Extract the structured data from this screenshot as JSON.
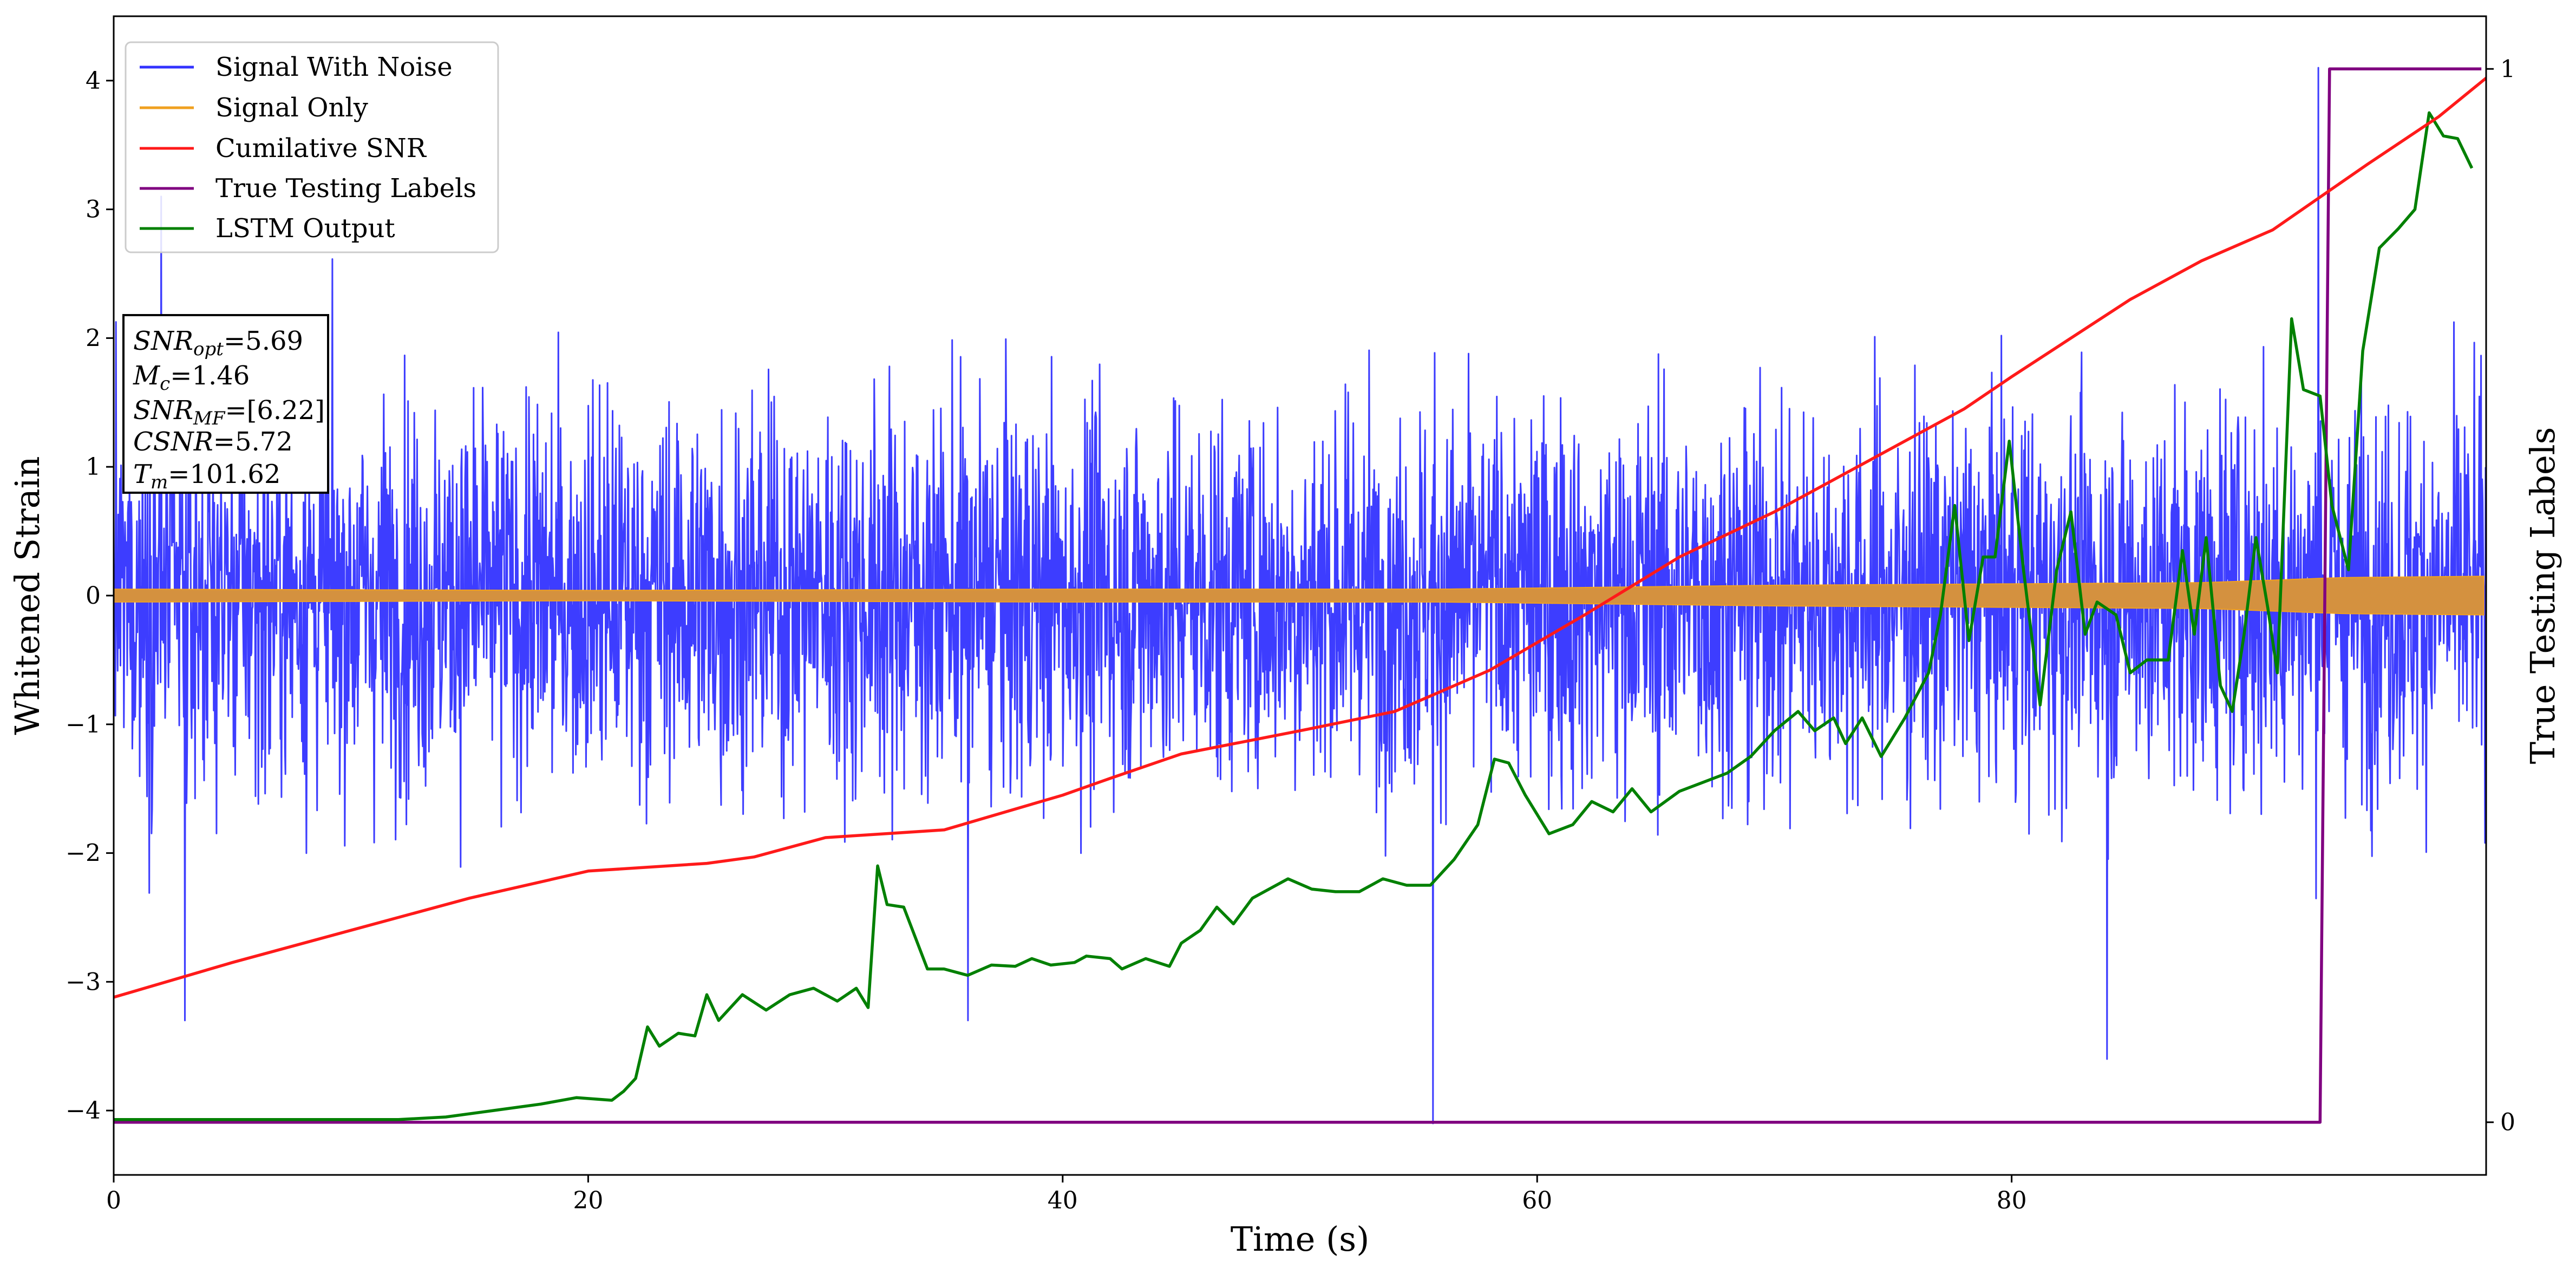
{
  "chart_data": {
    "type": "line",
    "xlabel": "Time (s)",
    "ylabel": "Whitened Strain",
    "ylabel_right": "True Testing Labels",
    "xlim": [
      0,
      100
    ],
    "ylim": [
      -4.5,
      4.5
    ],
    "ylim_right": [
      -0.05,
      1.05
    ],
    "x_ticks": [
      0,
      20,
      40,
      60,
      80
    ],
    "y_ticks": [
      -4,
      -3,
      -2,
      -1,
      0,
      1,
      2,
      3,
      4
    ],
    "y_ticks_right": [
      0,
      1
    ],
    "legend_position": "top-left",
    "series": [
      {
        "name": "Signal With Noise",
        "color": "#3333ff",
        "axis": "left",
        "style": "dense-noise",
        "typical_range": [
          -1.8,
          1.8
        ],
        "extremes": [
          [
            55.6,
            -4.1
          ],
          [
            92.9,
            4.1
          ],
          [
            2,
            3.1
          ],
          [
            3,
            -3.3
          ],
          [
            36,
            -3.3
          ],
          [
            84,
            -3.6
          ]
        ]
      },
      {
        "name": "Signal Only",
        "color": "#f0a020",
        "axis": "left",
        "style": "band",
        "envelope": [
          [
            0,
            0.05
          ],
          [
            20,
            0.04
          ],
          [
            40,
            0.05
          ],
          [
            56,
            0.05
          ],
          [
            70,
            0.08
          ],
          [
            88,
            0.1
          ],
          [
            94,
            0.14
          ],
          [
            99.9,
            0.15
          ]
        ]
      },
      {
        "name": "Cumilative SNR",
        "color": "#ff1a1a",
        "axis": "left",
        "points": [
          [
            0,
            -3.12
          ],
          [
            5,
            -2.85
          ],
          [
            10,
            -2.6
          ],
          [
            15,
            -2.35
          ],
          [
            20,
            -2.14
          ],
          [
            25,
            -2.08
          ],
          [
            27,
            -2.03
          ],
          [
            30,
            -1.88
          ],
          [
            35,
            -1.82
          ],
          [
            40,
            -1.55
          ],
          [
            42,
            -1.42
          ],
          [
            45,
            -1.23
          ],
          [
            50,
            -1.05
          ],
          [
            54,
            -0.9
          ],
          [
            58,
            -0.58
          ],
          [
            62,
            -0.15
          ],
          [
            66,
            0.3
          ],
          [
            70,
            0.65
          ],
          [
            75,
            1.15
          ],
          [
            78,
            1.45
          ],
          [
            80,
            1.7
          ],
          [
            85,
            2.3
          ],
          [
            88,
            2.6
          ],
          [
            91,
            2.84
          ],
          [
            95,
            3.35
          ],
          [
            98,
            3.72
          ],
          [
            100,
            4.02
          ]
        ]
      },
      {
        "name": "True Testing Labels",
        "color": "#800080",
        "axis": "right",
        "points": [
          [
            0,
            0
          ],
          [
            93.0,
            0
          ],
          [
            93.4,
            1
          ],
          [
            99.8,
            1
          ]
        ]
      },
      {
        "name": "LSTM Output",
        "color": "#008000",
        "axis": "left",
        "points": [
          [
            0,
            -4.07
          ],
          [
            12,
            -4.07
          ],
          [
            14,
            -4.05
          ],
          [
            16,
            -4.0
          ],
          [
            18,
            -3.95
          ],
          [
            19.5,
            -3.9
          ],
          [
            21,
            -3.92
          ],
          [
            21.5,
            -3.85
          ],
          [
            22,
            -3.75
          ],
          [
            22.5,
            -3.35
          ],
          [
            23,
            -3.5
          ],
          [
            23.8,
            -3.4
          ],
          [
            24.5,
            -3.42
          ],
          [
            25,
            -3.1
          ],
          [
            25.5,
            -3.3
          ],
          [
            26.5,
            -3.1
          ],
          [
            27.5,
            -3.22
          ],
          [
            28.5,
            -3.1
          ],
          [
            29.5,
            -3.05
          ],
          [
            30.5,
            -3.15
          ],
          [
            31.3,
            -3.05
          ],
          [
            31.8,
            -3.2
          ],
          [
            32.2,
            -2.1
          ],
          [
            32.6,
            -2.4
          ],
          [
            33.3,
            -2.42
          ],
          [
            34.3,
            -2.9
          ],
          [
            35,
            -2.9
          ],
          [
            36,
            -2.95
          ],
          [
            37,
            -2.87
          ],
          [
            38,
            -2.88
          ],
          [
            38.7,
            -2.82
          ],
          [
            39.5,
            -2.87
          ],
          [
            40.5,
            -2.85
          ],
          [
            41,
            -2.8
          ],
          [
            42,
            -2.82
          ],
          [
            42.5,
            -2.9
          ],
          [
            43.5,
            -2.82
          ],
          [
            44.5,
            -2.88
          ],
          [
            45,
            -2.7
          ],
          [
            45.8,
            -2.6
          ],
          [
            46.5,
            -2.42
          ],
          [
            47.2,
            -2.55
          ],
          [
            48,
            -2.35
          ],
          [
            49.5,
            -2.2
          ],
          [
            50.5,
            -2.28
          ],
          [
            51.5,
            -2.3
          ],
          [
            52.5,
            -2.3
          ],
          [
            53.5,
            -2.2
          ],
          [
            54.5,
            -2.25
          ],
          [
            55.5,
            -2.25
          ],
          [
            56.5,
            -2.05
          ],
          [
            57.5,
            -1.78
          ],
          [
            58.2,
            -1.27
          ],
          [
            58.8,
            -1.3
          ],
          [
            59.5,
            -1.55
          ],
          [
            60.5,
            -1.85
          ],
          [
            61.5,
            -1.78
          ],
          [
            62.3,
            -1.6
          ],
          [
            63.2,
            -1.68
          ],
          [
            64,
            -1.5
          ],
          [
            64.8,
            -1.68
          ],
          [
            66,
            -1.52
          ],
          [
            67,
            -1.45
          ],
          [
            68,
            -1.38
          ],
          [
            69,
            -1.25
          ],
          [
            70,
            -1.05
          ],
          [
            71,
            -0.9
          ],
          [
            71.7,
            -1.05
          ],
          [
            72.5,
            -0.95
          ],
          [
            73,
            -1.15
          ],
          [
            73.7,
            -0.95
          ],
          [
            74.5,
            -1.25
          ],
          [
            75,
            -1.1
          ],
          [
            75.5,
            -0.95
          ],
          [
            76.5,
            -0.6
          ],
          [
            77,
            -0.15
          ],
          [
            77.6,
            0.7
          ],
          [
            78.2,
            -0.35
          ],
          [
            78.8,
            0.3
          ],
          [
            79.3,
            0.3
          ],
          [
            79.9,
            1.2
          ],
          [
            80.5,
            0.2
          ],
          [
            81.2,
            -0.85
          ],
          [
            81.9,
            0.2
          ],
          [
            82.5,
            0.65
          ],
          [
            83.1,
            -0.3
          ],
          [
            83.6,
            -0.05
          ],
          [
            84.4,
            -0.15
          ],
          [
            85,
            -0.6
          ],
          [
            85.7,
            -0.5
          ],
          [
            86.6,
            -0.5
          ],
          [
            87.2,
            0.35
          ],
          [
            87.7,
            -0.3
          ],
          [
            88.2,
            0.45
          ],
          [
            88.8,
            -0.7
          ],
          [
            89.3,
            -0.9
          ],
          [
            89.8,
            -0.3
          ],
          [
            90.3,
            0.45
          ],
          [
            90.8,
            -0.1
          ],
          [
            91.2,
            -0.6
          ],
          [
            91.8,
            2.15
          ],
          [
            92.3,
            1.6
          ],
          [
            93.0,
            1.55
          ],
          [
            93.5,
            0.7
          ],
          [
            94.2,
            0.2
          ],
          [
            94.8,
            1.9
          ],
          [
            95.5,
            2.7
          ],
          [
            96.3,
            2.85
          ],
          [
            97.0,
            3.0
          ],
          [
            97.6,
            3.75
          ],
          [
            98.2,
            3.57
          ],
          [
            98.8,
            3.55
          ],
          [
            99.4,
            3.32
          ]
        ]
      }
    ]
  },
  "info_box": {
    "snr_opt_main": "SNR",
    "snr_opt_sub": "opt",
    "snr_opt_value": "=5.69",
    "mc_main": "M",
    "mc_sub": "c",
    "mc_value": "=1.46",
    "snr_mf_main": "SNR",
    "snr_mf_sub": "MF",
    "snr_mf_value": "=[6.22]",
    "csnr_main": "CSNR",
    "csnr_value": "=5.72",
    "tm_main": "T",
    "tm_sub": "m",
    "tm_value": "=101.62"
  }
}
